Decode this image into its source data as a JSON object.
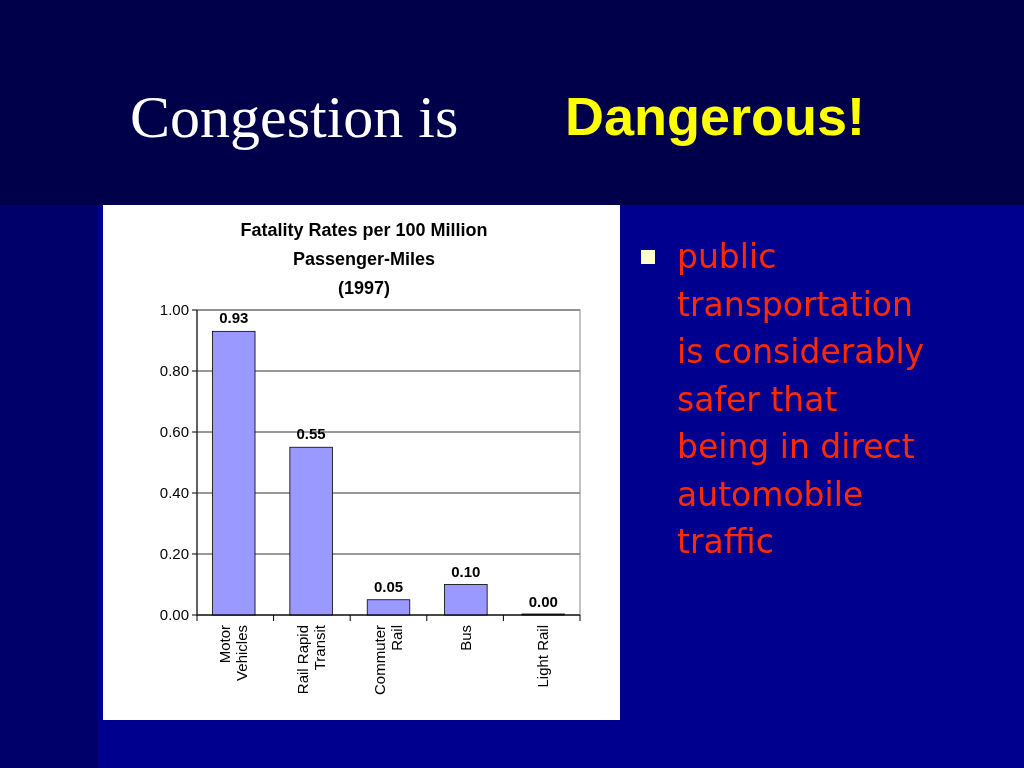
{
  "chart_data": {
    "type": "bar",
    "title": "Fatality Rates per 100 Million Passenger-Miles",
    "subtitle": "(1997)",
    "categories": [
      "Motor Vehicles",
      "Rail Rapid Transit",
      "Commuter Rail",
      "Bus",
      "Light Rail"
    ],
    "values": [
      0.93,
      0.55,
      0.05,
      0.1,
      0.0
    ],
    "color": "#9999ff",
    "ylim": [
      0,
      1
    ],
    "yticks": [
      {
        "value": 0,
        "label": "0.00"
      },
      {
        "value": 0.2,
        "label": "0.20"
      },
      {
        "value": 0.4,
        "label": "0.40"
      },
      {
        "value": 0.6,
        "label": "0.60"
      },
      {
        "value": 0.8,
        "label": "0.80"
      },
      {
        "value": 1,
        "label": "1.00"
      }
    ],
    "grid": "y",
    "value_labels": [
      "0.93",
      "0.55",
      "0.05",
      "0.10",
      "0.00"
    ],
    "annotations": [
      "Congestion is",
      "Dangerous!",
      "public transportation is considerably safer that being in direct automobile traffic"
    ]
  }
}
